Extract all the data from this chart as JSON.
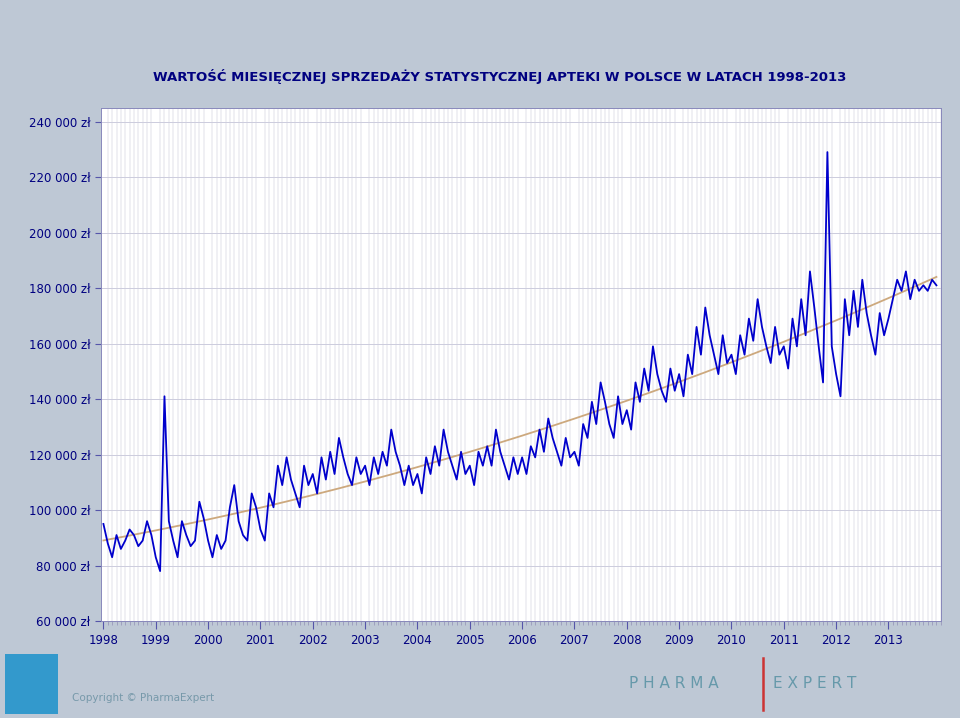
{
  "title": "WARTOŚĆ MIESIĘCZNEJ SPRZEDAŻY STATYSTYCZNEJ APTEKI W POLSCE W LATACH 1998-2013",
  "title_color": "#000080",
  "line_color": "#0000CC",
  "trend_color": "#C8A070",
  "background_outer": "#BEC8D5",
  "background_chart": "#FFFFFF",
  "footer_bg": "#BEC8D5",
  "blue_box_color": "#3399CC",
  "pharma_expert_color": "#6699AA",
  "separator_color": "#CC3333",
  "copyright_color": "#7799AA",
  "grid_color": "#CCCCDD",
  "ylim": [
    60000,
    245000
  ],
  "yticks": [
    60000,
    80000,
    100000,
    120000,
    140000,
    160000,
    180000,
    200000,
    220000,
    240000
  ],
  "start_year": 1998,
  "monthly_values": [
    95000,
    88000,
    83000,
    91000,
    86000,
    89000,
    93000,
    91000,
    87000,
    89000,
    96000,
    91000,
    83000,
    78000,
    141000,
    96000,
    89000,
    83000,
    96000,
    91000,
    87000,
    89000,
    103000,
    97000,
    89000,
    83000,
    91000,
    86000,
    89000,
    101000,
    109000,
    96000,
    91000,
    89000,
    106000,
    101000,
    93000,
    89000,
    106000,
    101000,
    116000,
    109000,
    119000,
    111000,
    106000,
    101000,
    116000,
    109000,
    113000,
    106000,
    119000,
    111000,
    121000,
    113000,
    126000,
    119000,
    113000,
    109000,
    119000,
    113000,
    116000,
    109000,
    119000,
    113000,
    121000,
    116000,
    129000,
    121000,
    116000,
    109000,
    116000,
    109000,
    113000,
    106000,
    119000,
    113000,
    123000,
    116000,
    129000,
    121000,
    116000,
    111000,
    121000,
    113000,
    116000,
    109000,
    121000,
    116000,
    123000,
    116000,
    129000,
    121000,
    116000,
    111000,
    119000,
    113000,
    119000,
    113000,
    123000,
    119000,
    129000,
    121000,
    133000,
    126000,
    121000,
    116000,
    126000,
    119000,
    121000,
    116000,
    131000,
    126000,
    139000,
    131000,
    146000,
    139000,
    131000,
    126000,
    141000,
    131000,
    136000,
    129000,
    146000,
    139000,
    151000,
    143000,
    159000,
    149000,
    143000,
    139000,
    151000,
    143000,
    149000,
    141000,
    156000,
    149000,
    166000,
    156000,
    173000,
    163000,
    156000,
    149000,
    163000,
    153000,
    156000,
    149000,
    163000,
    156000,
    169000,
    161000,
    176000,
    166000,
    159000,
    153000,
    166000,
    156000,
    159000,
    151000,
    169000,
    159000,
    176000,
    163000,
    186000,
    173000,
    159000,
    146000,
    229000,
    159000,
    149000,
    141000,
    176000,
    163000,
    179000,
    166000,
    183000,
    171000,
    163000,
    156000,
    171000,
    163000,
    169000,
    176000,
    183000,
    179000,
    186000,
    176000,
    183000,
    179000,
    181000,
    179000,
    183000,
    181000
  ]
}
